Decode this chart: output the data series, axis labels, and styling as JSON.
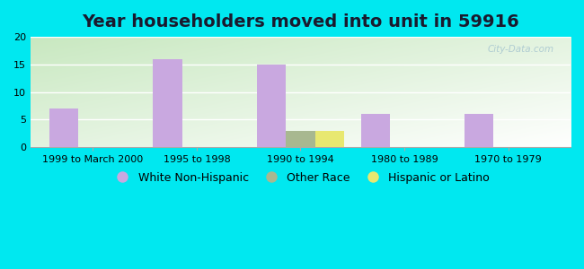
{
  "title": "Year householders moved into unit in 59916",
  "categories": [
    "1999 to March 2000",
    "1995 to 1998",
    "1990 to 1994",
    "1980 to 1989",
    "1970 to 1979"
  ],
  "series": {
    "White Non-Hispanic": [
      7,
      16,
      15,
      6,
      6
    ],
    "Other Race": [
      0,
      0,
      3,
      0,
      0
    ],
    "Hispanic or Latino": [
      0,
      0,
      3,
      0,
      0
    ]
  },
  "colors": {
    "White Non-Hispanic": "#c9a8e0",
    "Other Race": "#a8b890",
    "Hispanic or Latino": "#e8e870"
  },
  "ylim": [
    0,
    20
  ],
  "yticks": [
    0,
    5,
    10,
    15,
    20
  ],
  "bar_width": 0.28,
  "outer_bg": "#00e8f0",
  "title_fontsize": 14,
  "tick_fontsize": 8,
  "legend_fontsize": 9,
  "watermark": "City-Data.com",
  "title_color": "#1a1a2e"
}
